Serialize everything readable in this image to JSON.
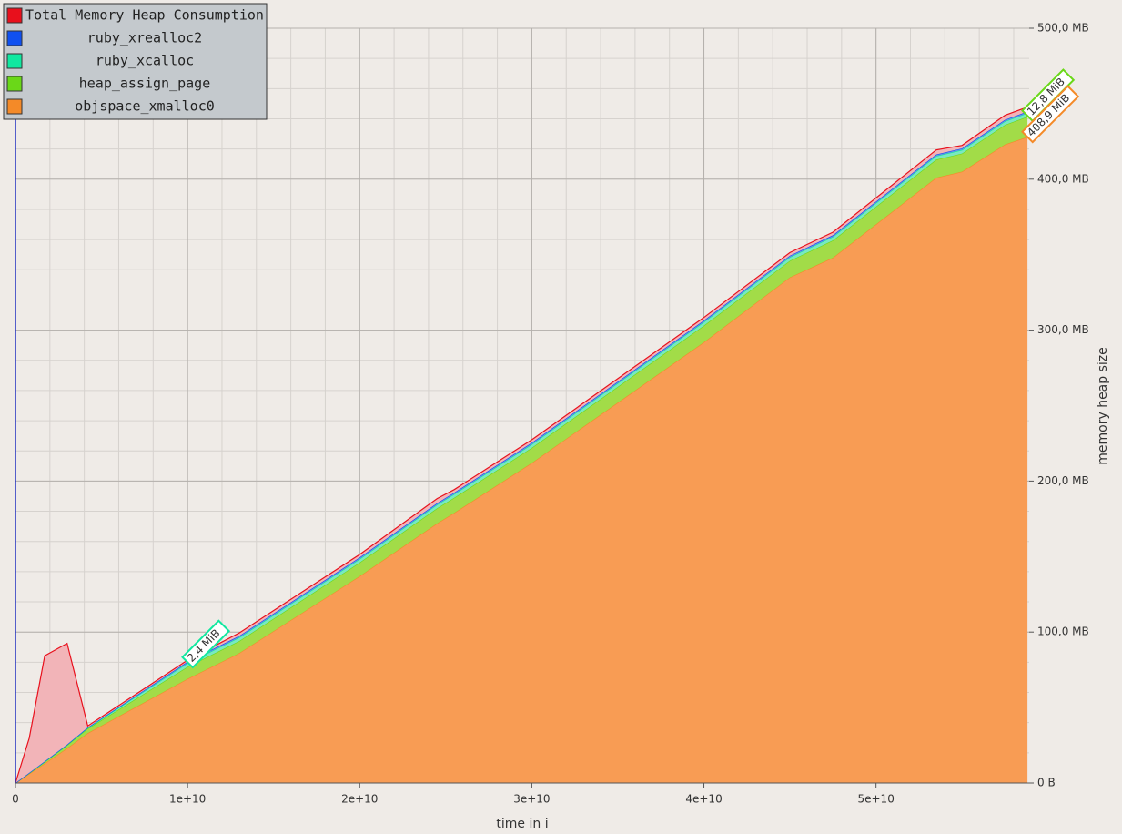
{
  "chart_data": {
    "type": "stacked_area",
    "x_label": "time in i",
    "y_label": "memory heap size",
    "x": [
      0,
      800000000,
      1700000000,
      3000000000,
      4200000000,
      10000000000,
      13000000000,
      20000000000,
      24500000000,
      25500000000,
      30000000000,
      40000000000,
      45000000000,
      47500000000,
      53500000000,
      55000000000,
      57500000000,
      58800000000
    ],
    "series": [
      {
        "name": "Total Memory Heap Consumption",
        "color": "#e8101c",
        "fill": "#f2b4b8",
        "values": [
          0,
          23,
          70,
          67,
          1,
          1,
          2,
          2,
          3,
          2,
          2,
          2,
          2,
          2,
          3,
          2,
          3,
          3
        ]
      },
      {
        "name": "ruby_xrealloc2",
        "color": "#1050f0",
        "fill": "#6a8ef0",
        "values": [
          0,
          0.1,
          0.1,
          0.2,
          0.3,
          1,
          1,
          1,
          1,
          1,
          1,
          1,
          1,
          1,
          1,
          1,
          1,
          1
        ]
      },
      {
        "name": "ruby_xcalloc",
        "color": "#10e8a0",
        "fill": "#7ae8c0",
        "values": [
          0,
          0.1,
          0.2,
          0.3,
          0.5,
          2.4,
          2.4,
          2.4,
          2.4,
          2.4,
          2.4,
          2.4,
          2.4,
          2.4,
          2.4,
          2.4,
          2.4,
          2.4
        ]
      },
      {
        "name": "heap_assign_page",
        "color": "#6ad818",
        "fill": "#a2dc48",
        "values": [
          0,
          0.5,
          1,
          2,
          3,
          8,
          8,
          9,
          10,
          10,
          10,
          11,
          11,
          11.5,
          12,
          12,
          13,
          13.4
        ]
      },
      {
        "name": "objspace_xmalloc0",
        "color": "#f48a28",
        "fill": "#f89c54",
        "values": [
          0,
          6,
          13,
          23,
          33,
          69,
          86,
          137,
          172,
          179,
          212,
          292,
          335,
          348,
          401,
          405,
          423,
          428
        ]
      }
    ],
    "xlim": [
      0,
      58900000000
    ],
    "xticks": [
      0,
      {
        "value": 10000000000,
        "label": "1e+10"
      },
      {
        "value": 20000000000,
        "label": "2e+10"
      },
      {
        "value": 30000000000,
        "label": "3e+10"
      },
      {
        "value": 40000000000,
        "label": "4e+10"
      },
      {
        "value": 50000000000,
        "label": "5e+10"
      }
    ],
    "ylim": [
      0,
      500
    ],
    "yticks": [
      {
        "value": 0,
        "label": "0 B"
      },
      {
        "value": 100,
        "label": "100,0 MB"
      },
      {
        "value": 200,
        "label": "200,0 MB"
      },
      {
        "value": 300,
        "label": "300,0 MB"
      },
      {
        "value": 400,
        "label": "400,0 MB"
      },
      {
        "value": 500,
        "label": "500,0 MB"
      }
    ],
    "grid": true,
    "legend": "top-left",
    "annotations": [
      {
        "text": "2,4 MiB",
        "color": "#10e8a0",
        "x": 10000000000,
        "y": 80
      },
      {
        "text": "12,8 MiB",
        "color": "#6ad818",
        "x": 58800000000,
        "y": 442
      },
      {
        "text": "408,9 MiB",
        "color": "#f48a28",
        "x": 58800000000,
        "y": 428
      }
    ]
  }
}
